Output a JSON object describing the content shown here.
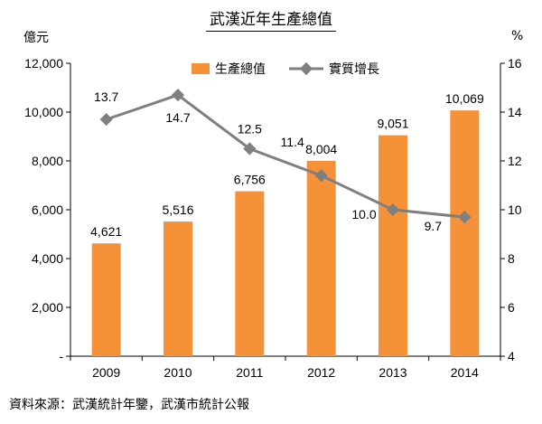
{
  "chart_data": {
    "type": "bar+line",
    "title": "武漢近年生產總值",
    "categories": [
      "2009",
      "2010",
      "2011",
      "2012",
      "2013",
      "2014"
    ],
    "series": [
      {
        "name": "生產總值",
        "type": "bar",
        "axis": "left",
        "values": [
          4621,
          5516,
          6756,
          8004,
          9051,
          10069
        ],
        "labels": [
          "4,621",
          "5,516",
          "6,756",
          "8,004",
          "9,051",
          "10,069"
        ],
        "color": "#f59138"
      },
      {
        "name": "實質增長",
        "type": "line",
        "axis": "right",
        "values": [
          13.7,
          14.7,
          12.5,
          11.4,
          10.0,
          9.7
        ],
        "labels": [
          "13.7",
          "14.7",
          "12.5",
          "11.4",
          "10.0",
          "9.7"
        ],
        "color": "#7f7f7f"
      }
    ],
    "y_left": {
      "unit": "億元",
      "min": 0,
      "max": 12000,
      "ticks": [
        "-",
        "2,000",
        "4,000",
        "6,000",
        "8,000",
        "10,000",
        "12,000"
      ]
    },
    "y_right": {
      "unit": "%",
      "min": 4,
      "max": 16,
      "ticks": [
        "4",
        "6",
        "8",
        "10",
        "12",
        "14",
        "16"
      ]
    },
    "legend": "top",
    "grid": false
  },
  "source": "資料來源：武漢統計年鑒，武漢市統計公報"
}
